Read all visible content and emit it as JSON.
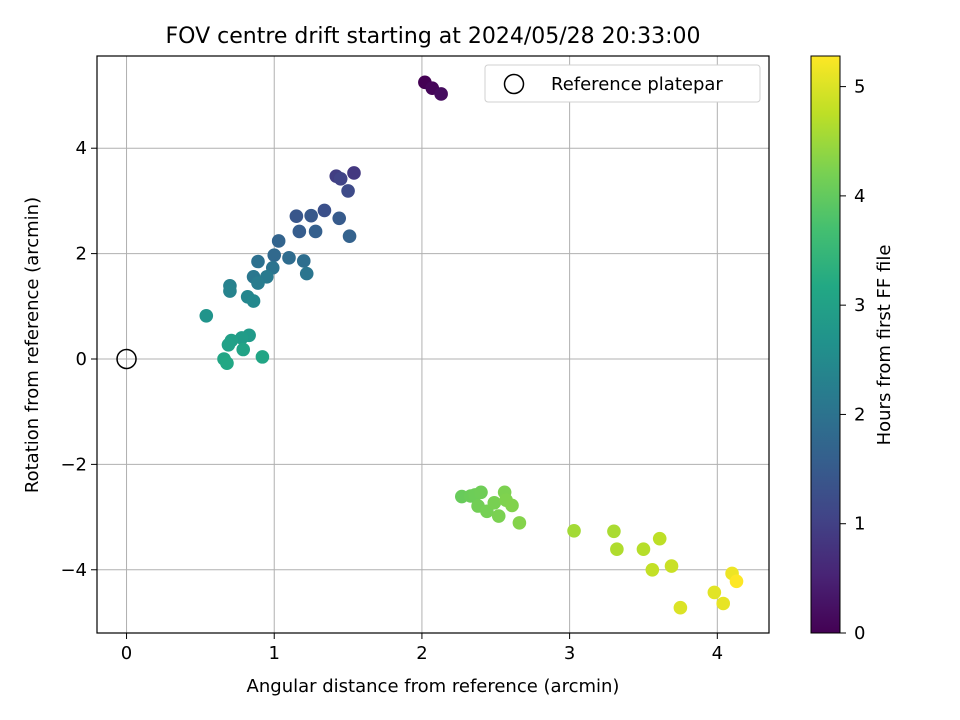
{
  "chart_data": {
    "type": "scatter",
    "title": "FOV centre drift starting at 2024/05/28 20:33:00",
    "xlabel": "Angular distance from reference (arcmin)",
    "ylabel": "Rotation from reference (arcmin)",
    "xlim": [
      -0.2,
      4.35
    ],
    "ylim": [
      -5.2,
      5.75
    ],
    "xticks": [
      0,
      1,
      2,
      3,
      4
    ],
    "yticks": [
      -4,
      -2,
      0,
      2,
      4
    ],
    "xtick_labels": [
      "0",
      "1",
      "2",
      "3",
      "4"
    ],
    "ytick_labels": [
      "−4",
      "−2",
      "0",
      "2",
      "4"
    ],
    "grid": true,
    "legend": {
      "label": "Reference platepar",
      "placement": "top-right"
    },
    "reference_point": {
      "x": 0,
      "y": 0
    },
    "colorbar": {
      "label": "Hours from first FF file",
      "range": [
        0,
        5.28
      ],
      "ticks": [
        0,
        1,
        2,
        3,
        4,
        5
      ],
      "tick_labels": [
        "0",
        "1",
        "2",
        "3",
        "4",
        "5"
      ],
      "colormap": "viridis"
    },
    "series": [
      {
        "points": [
          {
            "x": 2.02,
            "y": 5.25,
            "t": 0.0
          },
          {
            "x": 2.07,
            "y": 5.14,
            "t": 0.08
          },
          {
            "x": 2.13,
            "y": 5.03,
            "t": 0.16
          },
          {
            "x": 1.54,
            "y": 3.53,
            "t": 0.85
          },
          {
            "x": 1.42,
            "y": 3.47,
            "t": 0.95
          },
          {
            "x": 1.45,
            "y": 3.42,
            "t": 1.05
          },
          {
            "x": 1.5,
            "y": 3.19,
            "t": 1.2
          },
          {
            "x": 1.34,
            "y": 2.82,
            "t": 1.3
          },
          {
            "x": 1.15,
            "y": 2.71,
            "t": 1.4
          },
          {
            "x": 1.25,
            "y": 2.72,
            "t": 1.45
          },
          {
            "x": 1.44,
            "y": 2.67,
            "t": 1.5
          },
          {
            "x": 1.17,
            "y": 2.42,
            "t": 1.55
          },
          {
            "x": 1.28,
            "y": 2.42,
            "t": 1.6
          },
          {
            "x": 1.51,
            "y": 2.33,
            "t": 1.65
          },
          {
            "x": 1.03,
            "y": 2.24,
            "t": 1.7
          },
          {
            "x": 1.0,
            "y": 1.97,
            "t": 1.8
          },
          {
            "x": 1.1,
            "y": 1.92,
            "t": 1.85
          },
          {
            "x": 1.2,
            "y": 1.86,
            "t": 1.9
          },
          {
            "x": 0.89,
            "y": 1.85,
            "t": 1.95
          },
          {
            "x": 0.99,
            "y": 1.73,
            "t": 2.0
          },
          {
            "x": 1.22,
            "y": 1.62,
            "t": 2.05
          },
          {
            "x": 0.86,
            "y": 1.56,
            "t": 2.1
          },
          {
            "x": 0.95,
            "y": 1.56,
            "t": 2.15
          },
          {
            "x": 0.89,
            "y": 1.44,
            "t": 2.2
          },
          {
            "x": 0.7,
            "y": 1.39,
            "t": 2.3
          },
          {
            "x": 0.7,
            "y": 1.29,
            "t": 2.35
          },
          {
            "x": 0.82,
            "y": 1.18,
            "t": 2.4
          },
          {
            "x": 0.86,
            "y": 1.1,
            "t": 2.45
          },
          {
            "x": 0.54,
            "y": 0.82,
            "t": 2.7
          },
          {
            "x": 0.83,
            "y": 0.45,
            "t": 2.85
          },
          {
            "x": 0.78,
            "y": 0.4,
            "t": 2.9
          },
          {
            "x": 0.71,
            "y": 0.35,
            "t": 2.95
          },
          {
            "x": 0.69,
            "y": 0.27,
            "t": 3.0
          },
          {
            "x": 0.79,
            "y": 0.18,
            "t": 3.05
          },
          {
            "x": 0.92,
            "y": 0.04,
            "t": 3.1
          },
          {
            "x": 0.66,
            "y": 0.0,
            "t": 3.1
          },
          {
            "x": 0.68,
            "y": -0.08,
            "t": 3.15
          },
          {
            "x": 2.27,
            "y": -2.61,
            "t": 4.05
          },
          {
            "x": 2.33,
            "y": -2.6,
            "t": 4.08
          },
          {
            "x": 2.36,
            "y": -2.58,
            "t": 4.1
          },
          {
            "x": 2.4,
            "y": -2.53,
            "t": 4.12
          },
          {
            "x": 2.38,
            "y": -2.79,
            "t": 4.15
          },
          {
            "x": 2.44,
            "y": -2.89,
            "t": 4.18
          },
          {
            "x": 2.49,
            "y": -2.73,
            "t": 4.2
          },
          {
            "x": 2.52,
            "y": -2.98,
            "t": 4.22
          },
          {
            "x": 2.56,
            "y": -2.53,
            "t": 4.24
          },
          {
            "x": 2.57,
            "y": -2.68,
            "t": 4.26
          },
          {
            "x": 2.61,
            "y": -2.78,
            "t": 4.28
          },
          {
            "x": 2.66,
            "y": -3.11,
            "t": 4.3
          },
          {
            "x": 3.03,
            "y": -3.26,
            "t": 4.55
          },
          {
            "x": 3.3,
            "y": -3.27,
            "t": 4.6
          },
          {
            "x": 3.32,
            "y": -3.61,
            "t": 4.65
          },
          {
            "x": 3.5,
            "y": -3.61,
            "t": 4.7
          },
          {
            "x": 3.61,
            "y": -3.41,
            "t": 4.75
          },
          {
            "x": 3.56,
            "y": -4.0,
            "t": 4.8
          },
          {
            "x": 3.69,
            "y": -3.93,
            "t": 4.85
          },
          {
            "x": 3.75,
            "y": -4.72,
            "t": 5.0
          },
          {
            "x": 3.98,
            "y": -4.43,
            "t": 5.05
          },
          {
            "x": 4.04,
            "y": -4.64,
            "t": 5.1
          },
          {
            "x": 4.1,
            "y": -4.07,
            "t": 5.15
          },
          {
            "x": 4.13,
            "y": -4.22,
            "t": 5.28
          }
        ]
      }
    ]
  }
}
